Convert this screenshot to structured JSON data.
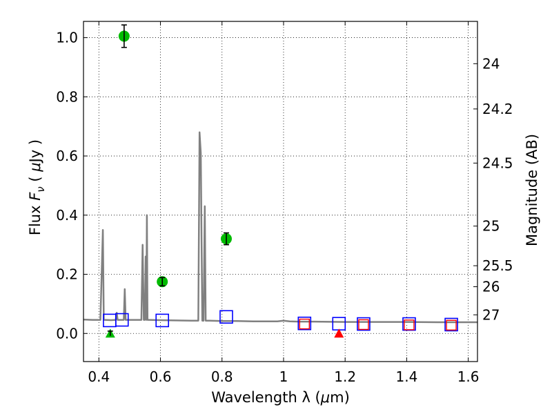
{
  "chart_data": {
    "type": "scatter",
    "xlabel": "Wavelength  λ (μm)",
    "ylabel": "Flux  F_ν  ( μJy )",
    "ylabel_parts": {
      "prefix": "Flux  ",
      "symbol": "F",
      "subscript": "ν",
      "open": "  ( ",
      "mu": "μ",
      "unit": "Jy )"
    },
    "xlabel_parts": {
      "prefix": "Wavelength  λ (",
      "mu": "μ",
      "unit": "m)"
    },
    "y2label": "Magnitude (AB)",
    "xlim": [
      0.35,
      1.63
    ],
    "ylim": [
      -0.095,
      1.055
    ],
    "grid": true,
    "x_ticks": [
      0.4,
      0.6,
      0.8,
      1.0,
      1.2,
      1.4,
      1.6
    ],
    "x_tick_labels": [
      "0.4",
      "0.6",
      "0.8",
      "1",
      "1.2",
      "1.4",
      "1.6"
    ],
    "y_ticks": [
      0.0,
      0.2,
      0.4,
      0.6,
      0.8,
      1.0
    ],
    "y_tick_labels": [
      "0.0",
      "0.2",
      "0.4",
      "0.6",
      "0.8",
      "1.0"
    ],
    "mag_ticks": [
      {
        "label": "24",
        "flux": 0.912
      },
      {
        "label": "24.2",
        "flux": 0.759
      },
      {
        "label": "24.5",
        "flux": 0.576
      },
      {
        "label": "25",
        "flux": 0.363
      },
      {
        "label": "25.5",
        "flux": 0.229
      },
      {
        "label": "26",
        "flux": 0.158
      },
      {
        "label": "27",
        "flux": 0.063
      }
    ],
    "series": [
      {
        "name": "model spectrum",
        "style": "line",
        "color": "#808080",
        "x": [
          0.35,
          0.38,
          0.405,
          0.413,
          0.416,
          0.419,
          0.44,
          0.455,
          0.458,
          0.461,
          0.47,
          0.481,
          0.484,
          0.487,
          0.5,
          0.52,
          0.538,
          0.542,
          0.546,
          0.549,
          0.552,
          0.554,
          0.556,
          0.558,
          0.562,
          0.6,
          0.65,
          0.7,
          0.723,
          0.727,
          0.731,
          0.736,
          0.74,
          0.744,
          0.747,
          0.75,
          0.76,
          0.8,
          0.85,
          0.9,
          0.95,
          0.98,
          1.0,
          1.02,
          1.05,
          1.1,
          1.2,
          1.3,
          1.4,
          1.5,
          1.63
        ],
        "y": [
          0.047,
          0.046,
          0.046,
          0.35,
          0.046,
          0.046,
          0.045,
          0.046,
          0.07,
          0.046,
          0.046,
          0.046,
          0.15,
          0.046,
          0.046,
          0.046,
          0.046,
          0.3,
          0.046,
          0.046,
          0.26,
          0.046,
          0.4,
          0.046,
          0.046,
          0.045,
          0.044,
          0.043,
          0.043,
          0.68,
          0.61,
          0.043,
          0.043,
          0.43,
          0.043,
          0.043,
          0.043,
          0.042,
          0.042,
          0.041,
          0.041,
          0.041,
          0.043,
          0.041,
          0.04,
          0.04,
          0.039,
          0.039,
          0.039,
          0.038,
          0.038
        ]
      },
      {
        "name": "detections",
        "style": "circle",
        "color": "#00bb00",
        "points": [
          {
            "x": 0.482,
            "y": 1.005,
            "err": 0.038
          },
          {
            "x": 0.606,
            "y": 0.175,
            "err": 0.014
          },
          {
            "x": 0.814,
            "y": 0.32,
            "err": 0.02
          }
        ]
      },
      {
        "name": "model photometry",
        "style": "open-square",
        "color": "#0000ff",
        "points": [
          {
            "x": 0.435,
            "y": 0.044
          },
          {
            "x": 0.475,
            "y": 0.046
          },
          {
            "x": 0.606,
            "y": 0.044
          },
          {
            "x": 0.814,
            "y": 0.056
          },
          {
            "x": 1.068,
            "y": 0.034
          },
          {
            "x": 1.18,
            "y": 0.033
          },
          {
            "x": 1.26,
            "y": 0.032
          },
          {
            "x": 1.408,
            "y": 0.032
          },
          {
            "x": 1.545,
            "y": 0.03
          }
        ]
      },
      {
        "name": "observed photometry",
        "style": "open-square-small",
        "color": "#ff0000",
        "points": [
          {
            "x": 1.068,
            "y": 0.032
          },
          {
            "x": 1.26,
            "y": 0.03
          },
          {
            "x": 1.408,
            "y": 0.029
          },
          {
            "x": 1.545,
            "y": 0.028
          }
        ]
      },
      {
        "name": "upper limit green",
        "style": "triangle",
        "color": "#00bb00",
        "points": [
          {
            "x": 0.437,
            "y": 0.0,
            "err": 0.008
          }
        ]
      },
      {
        "name": "upper limit red",
        "style": "triangle",
        "color": "#ff0000",
        "points": [
          {
            "x": 1.18,
            "y": 0.0
          }
        ]
      }
    ]
  }
}
